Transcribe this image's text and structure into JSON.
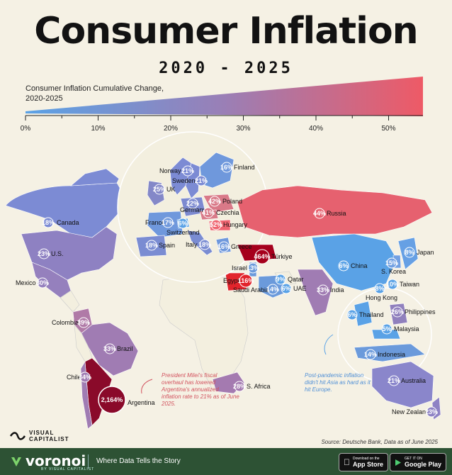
{
  "header": {
    "title": "Consumer Inflation",
    "subtitle": "2020 - 2025"
  },
  "legend": {
    "title": "Consumer Inflation Cumulative Change, 2020-2025",
    "ticks": [
      "0%",
      "10%",
      "20%",
      "30%",
      "40%",
      "50%"
    ]
  },
  "countries": [
    {
      "name": "Canada",
      "value": "18%"
    },
    {
      "name": "U.S.",
      "value": "23%"
    },
    {
      "name": "Mexico",
      "value": "30%"
    },
    {
      "name": "Colombia",
      "value": "39%"
    },
    {
      "name": "Brazil",
      "value": "33%"
    },
    {
      "name": "Chile",
      "value": "34%"
    },
    {
      "name": "Argentina",
      "value": "2,164%"
    },
    {
      "name": "Norway",
      "value": "21%"
    },
    {
      "name": "Finland",
      "value": "16%"
    },
    {
      "name": "Sweden",
      "value": "21%"
    },
    {
      "name": "UK",
      "value": "25%"
    },
    {
      "name": "Poland",
      "value": "42%"
    },
    {
      "name": "Germany",
      "value": "22%"
    },
    {
      "name": "Czechia",
      "value": "41%"
    },
    {
      "name": "France",
      "value": "17%"
    },
    {
      "name": "Switzerland",
      "value": "6%"
    },
    {
      "name": "Hungary",
      "value": "52%"
    },
    {
      "name": "Spain",
      "value": "18%"
    },
    {
      "name": "Italy",
      "value": "18%"
    },
    {
      "name": "Greece",
      "value": "16%"
    },
    {
      "name": "Russia",
      "value": "44%"
    },
    {
      "name": "Türkiye",
      "value": "464%"
    },
    {
      "name": "Israel",
      "value": "13%"
    },
    {
      "name": "Egypt",
      "value": "116%"
    },
    {
      "name": "Saudi Arabia",
      "value": "14%"
    },
    {
      "name": "Qatar",
      "value": "9%"
    },
    {
      "name": "UAE",
      "value": "6%"
    },
    {
      "name": "India",
      "value": "33%"
    },
    {
      "name": "China",
      "value": "6%"
    },
    {
      "name": "Japan",
      "value": "8%"
    },
    {
      "name": "S. Korea",
      "value": "15%"
    },
    {
      "name": "Taiwan",
      "value": "10%"
    },
    {
      "name": "Hong Kong",
      "value": "8%"
    },
    {
      "name": "Thailand",
      "value": "6%"
    },
    {
      "name": "Philippines",
      "value": "26%"
    },
    {
      "name": "Malaysia",
      "value": "5%"
    },
    {
      "name": "Indonesia",
      "value": "14%"
    },
    {
      "name": "Australia",
      "value": "21%"
    },
    {
      "name": "South Africa",
      "value": "28%"
    },
    {
      "name": "New Zealand",
      "value": "23%"
    }
  ],
  "display_names": {
    "south_africa": "S. Africa"
  },
  "annotations": {
    "argentina": "President Milei's fiscal overhaul has lowered Argentina's annualized inflation rate to 21% as of June 2025.",
    "asia": "Post-pandemic inflation didn't hit Asia as hard as it hit Europe."
  },
  "source": "Source: Deutsche Bank, Data as of June 2025",
  "branding": {
    "logo_line1": "VISUAL",
    "logo_line2": "CAPITALIST",
    "footer_brand": "voronoi",
    "footer_brand_sub": "BY VISUAL CAPITALIST",
    "footer_tagline": "Where Data Tells the Story",
    "app_store_small": "Download on the",
    "app_store_big": "App Store",
    "google_play_small": "GET IT ON",
    "google_play_big": "Google Play"
  },
  "colors": {
    "low": "#5aa2e6",
    "mid": "#9a7fb6",
    "high": "#e8636f",
    "extreme": "#a5001c",
    "land_neutral": "#f3efdf",
    "background": "#f5f1e4",
    "footer": "#2d5234"
  }
}
